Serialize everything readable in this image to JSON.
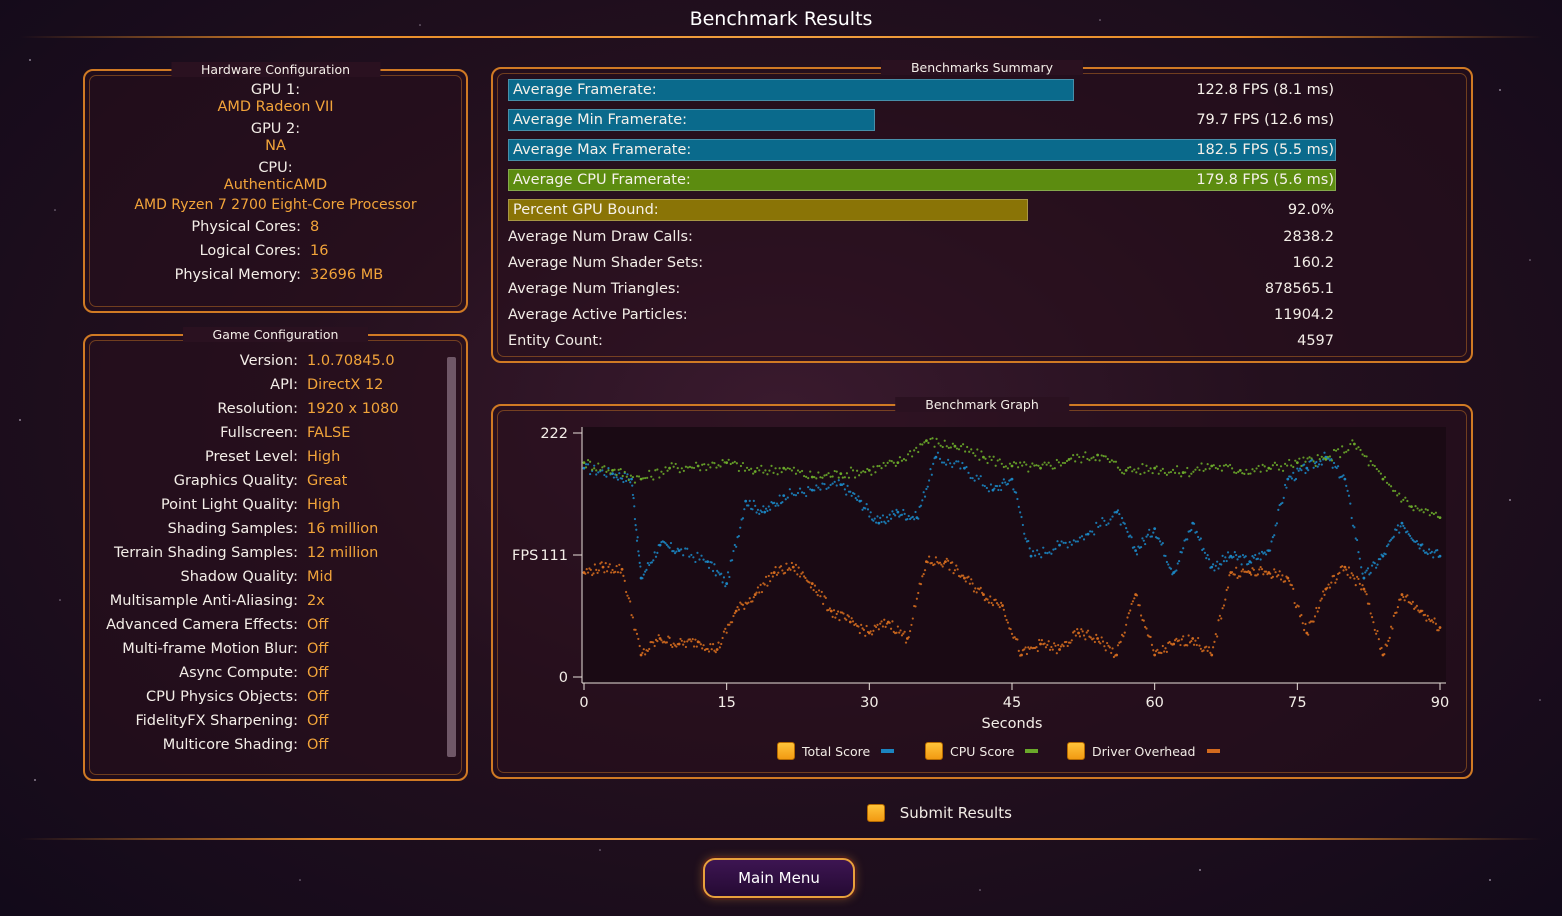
{
  "title": "Benchmark Results",
  "hardware": {
    "panel_title": "Hardware Configuration",
    "gpu1_label": "GPU 1:",
    "gpu1": "AMD Radeon VII",
    "gpu2_label": "GPU 2:",
    "gpu2": "NA",
    "cpu_label": "CPU:",
    "cpu_vendor": "AuthenticAMD",
    "cpu_name": "AMD Ryzen 7 2700 Eight-Core Processor",
    "rows": [
      {
        "label": "Physical Cores:",
        "value": "8"
      },
      {
        "label": "Logical Cores:",
        "value": "16"
      },
      {
        "label": "Physical Memory:",
        "value": "32696  MB"
      }
    ]
  },
  "game": {
    "panel_title": "Game Configuration",
    "rows": [
      {
        "label": "Version:",
        "value": "1.0.70845.0"
      },
      {
        "label": "API:",
        "value": "DirectX 12"
      },
      {
        "label": "Resolution:",
        "value": "1920 x 1080"
      },
      {
        "label": "Fullscreen:",
        "value": "FALSE"
      },
      {
        "label": "Preset Level:",
        "value": "High"
      },
      {
        "label": "Graphics Quality:",
        "value": "Great"
      },
      {
        "label": "Point Light Quality:",
        "value": "High"
      },
      {
        "label": "Shading Samples:",
        "value": "16 million"
      },
      {
        "label": "Terrain Shading Samples:",
        "value": "12 million"
      },
      {
        "label": "Shadow Quality:",
        "value": "Mid"
      },
      {
        "label": "Multisample Anti-Aliasing:",
        "value": "2x"
      },
      {
        "label": "Advanced Camera Effects:",
        "value": "Off"
      },
      {
        "label": "Multi-frame Motion Blur:",
        "value": "Off"
      },
      {
        "label": "Async Compute:",
        "value": "Off"
      },
      {
        "label": "CPU Physics Objects:",
        "value": "Off"
      },
      {
        "label": "FidelityFX Sharpening:",
        "value": "Off"
      },
      {
        "label": "Multicore Shading:",
        "value": "Off"
      }
    ]
  },
  "summary": {
    "panel_title": "Benchmarks Summary",
    "bars": [
      {
        "label": "Average Framerate:",
        "value": "122.8 FPS (8.1 ms)",
        "fraction": 0.683,
        "color": "#0a6a8c"
      },
      {
        "label": "Average Min Framerate:",
        "value": "79.7 FPS (12.6 ms)",
        "fraction": 0.443,
        "color": "#0a6a8c"
      },
      {
        "label": "Average Max Framerate:",
        "value": "182.5 FPS (5.5 ms)",
        "fraction": 1.0,
        "color": "#0a6a8c"
      },
      {
        "label": "Average CPU Framerate:",
        "value": "179.8 FPS (5.6 ms)",
        "fraction": 1.0,
        "color": "#5c8c10"
      },
      {
        "label": "Percent GPU Bound:",
        "value": "92.0%",
        "fraction": 0.628,
        "color": "#8a7406"
      }
    ],
    "rows": [
      {
        "label": "Average Num Draw Calls:",
        "value": "2838.2"
      },
      {
        "label": "Average Num Shader Sets:",
        "value": "160.2"
      },
      {
        "label": "Average Num Triangles:",
        "value": "878565.1"
      },
      {
        "label": "Average Active Particles:",
        "value": "11904.2"
      },
      {
        "label": "Entity Count:",
        "value": "4597"
      }
    ]
  },
  "graph": {
    "panel_title": "Benchmark Graph",
    "legend": [
      {
        "label": "Total Score",
        "color": "#1b84c0"
      },
      {
        "label": "CPU Score",
        "color": "#6aa82a"
      },
      {
        "label": "Driver Overhead",
        "color": "#d26a1e"
      }
    ]
  },
  "chart_data": {
    "type": "scatter",
    "xlabel": "Seconds",
    "ylabel": "FPS",
    "xlim": [
      0,
      90
    ],
    "ylim": [
      0,
      222
    ],
    "x_ticks": [
      "0",
      "15",
      "30",
      "45",
      "60",
      "75",
      "90"
    ],
    "y_ticks": [
      "0",
      "111",
      "222"
    ],
    "series": [
      {
        "name": "Total Score",
        "color": "#1b84c0",
        "x": [
          0,
          3,
          5,
          6,
          8,
          10,
          13,
          15,
          17,
          19,
          21,
          24,
          27,
          29,
          31,
          33,
          35,
          37,
          40,
          43,
          45,
          47,
          50,
          53,
          56,
          58,
          60,
          62,
          64,
          66,
          68,
          70,
          72,
          74,
          76,
          78,
          80,
          82,
          84,
          86,
          88,
          90
        ],
        "y": [
          190,
          185,
          180,
          90,
          120,
          115,
          105,
          85,
          160,
          150,
          165,
          170,
          175,
          160,
          140,
          150,
          145,
          200,
          190,
          170,
          180,
          110,
          120,
          130,
          150,
          115,
          135,
          95,
          140,
          100,
          110,
          105,
          115,
          180,
          190,
          200,
          180,
          90,
          110,
          140,
          120,
          110
        ]
      },
      {
        "name": "CPU Score",
        "color": "#6aa82a",
        "x": [
          0,
          3,
          6,
          9,
          12,
          15,
          18,
          21,
          24,
          27,
          30,
          33,
          36,
          39,
          42,
          45,
          48,
          51,
          54,
          57,
          60,
          63,
          66,
          69,
          72,
          75,
          78,
          81,
          84,
          87,
          90
        ],
        "y": [
          195,
          188,
          180,
          190,
          192,
          195,
          187,
          190,
          182,
          185,
          188,
          195,
          215,
          210,
          200,
          192,
          190,
          198,
          202,
          188,
          190,
          186,
          192,
          188,
          190,
          195,
          198,
          212,
          180,
          155,
          145
        ]
      },
      {
        "name": "Driver Overhead",
        "color": "#d26a1e",
        "x": [
          0,
          2,
          4,
          6,
          8,
          10,
          12,
          14,
          16,
          18,
          20,
          22,
          24,
          26,
          28,
          30,
          32,
          34,
          36,
          38,
          40,
          42,
          44,
          46,
          48,
          50,
          52,
          54,
          56,
          58,
          60,
          62,
          64,
          66,
          68,
          70,
          72,
          74,
          76,
          78,
          80,
          82,
          84,
          86,
          88,
          90
        ],
        "y": [
          95,
          100,
          98,
          20,
          35,
          30,
          32,
          25,
          60,
          75,
          95,
          100,
          85,
          60,
          50,
          40,
          50,
          35,
          105,
          105,
          90,
          75,
          65,
          20,
          30,
          25,
          40,
          35,
          20,
          75,
          20,
          30,
          35,
          20,
          95,
          95,
          95,
          90,
          40,
          80,
          100,
          80,
          20,
          75,
          60,
          45
        ]
      }
    ]
  },
  "submit": {
    "label": "Submit Results"
  },
  "main_menu": {
    "label": "Main Menu"
  }
}
